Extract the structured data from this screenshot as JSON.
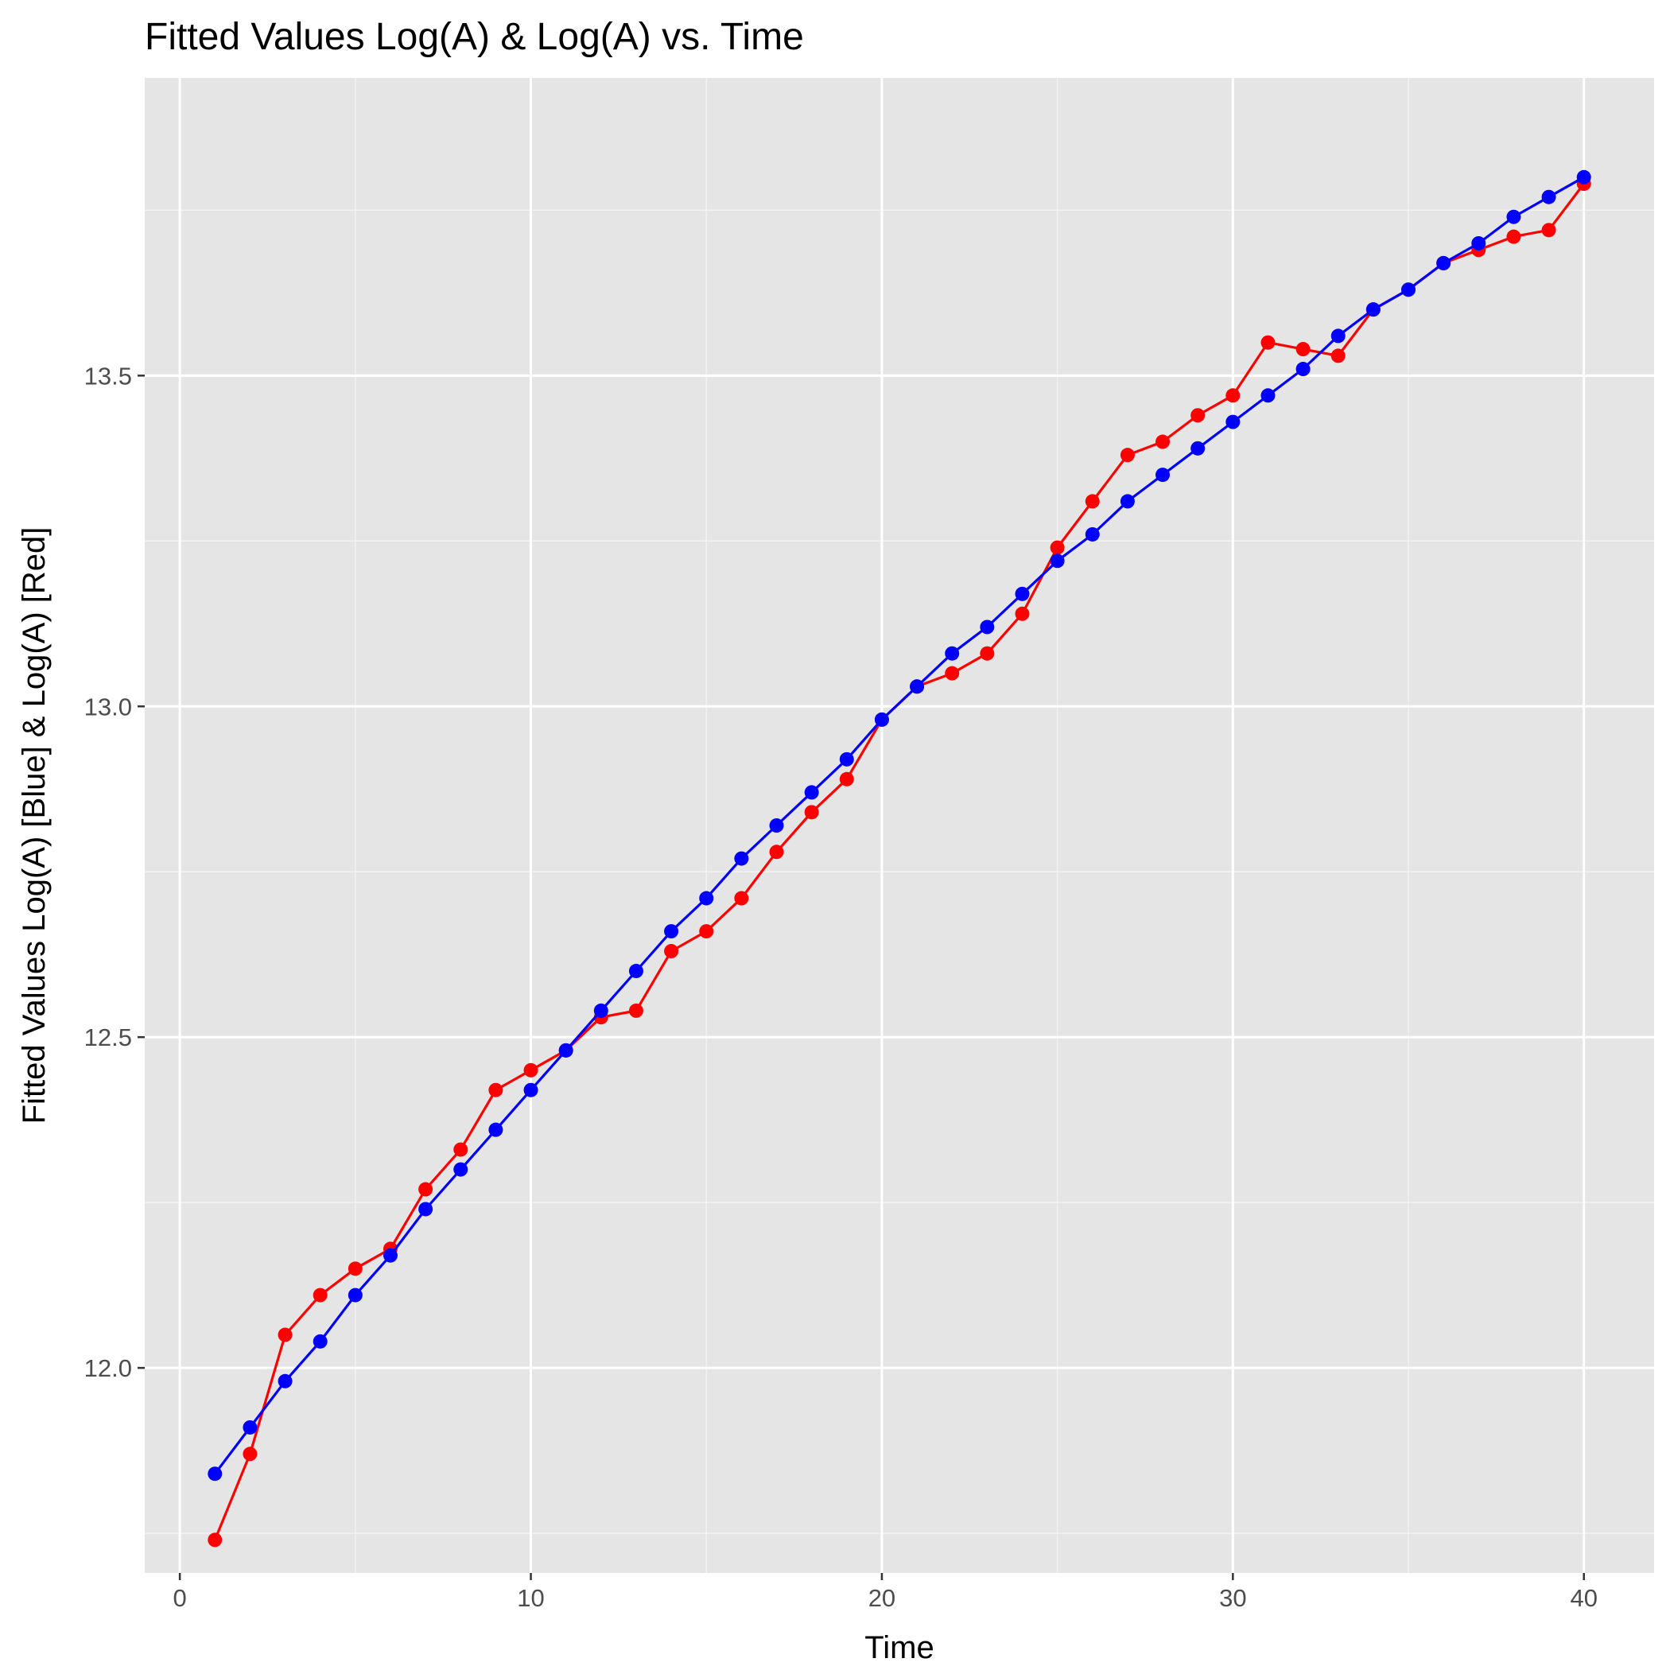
{
  "chart_data": {
    "type": "line",
    "title": "Fitted Values Log(A) & Log(A) vs. Time",
    "xlabel": "Time",
    "ylabel": "Fitted Values Log(A) [Blue] & Log(A) [Red]",
    "xlim": [
      -1.0,
      42.0
    ],
    "ylim": [
      11.69,
      13.95
    ],
    "x_ticks": [
      0,
      10,
      20,
      30,
      40
    ],
    "y_ticks": [
      12.0,
      12.5,
      13.0,
      13.5
    ],
    "x_tick_labels": [
      "0",
      "10",
      "20",
      "30",
      "40"
    ],
    "y_tick_labels": [
      "12.0",
      "12.5",
      "13.0",
      "13.5"
    ],
    "grid": true,
    "panel_background": "#e5e5e5",
    "x": [
      1,
      2,
      3,
      4,
      5,
      6,
      7,
      8,
      9,
      10,
      11,
      12,
      13,
      14,
      15,
      16,
      17,
      18,
      19,
      20,
      21,
      22,
      23,
      24,
      25,
      26,
      27,
      28,
      29,
      30,
      31,
      32,
      33,
      34,
      35,
      36,
      37,
      38,
      39,
      40
    ],
    "series": [
      {
        "color": "#ff0000",
        "values": [
          11.74,
          11.87,
          12.05,
          12.11,
          12.15,
          12.18,
          12.27,
          12.33,
          12.42,
          12.45,
          12.48,
          12.53,
          12.54,
          12.63,
          12.66,
          12.71,
          12.78,
          12.84,
          12.89,
          12.98,
          13.03,
          13.05,
          13.08,
          13.14,
          13.24,
          13.31,
          13.38,
          13.4,
          13.44,
          13.47,
          13.55,
          13.54,
          13.53,
          13.6,
          13.63,
          13.67,
          13.69,
          13.71,
          13.72,
          13.79
        ]
      },
      {
        "color": "#0000ff",
        "values": [
          11.84,
          11.91,
          11.98,
          12.04,
          12.11,
          12.17,
          12.24,
          12.3,
          12.36,
          12.42,
          12.48,
          12.54,
          12.6,
          12.66,
          12.71,
          12.77,
          12.82,
          12.87,
          12.92,
          12.98,
          13.03,
          13.08,
          13.12,
          13.17,
          13.22,
          13.26,
          13.31,
          13.35,
          13.39,
          13.43,
          13.47,
          13.51,
          13.56,
          13.6,
          13.63,
          13.67,
          13.7,
          13.74,
          13.77,
          13.8
        ]
      }
    ]
  }
}
